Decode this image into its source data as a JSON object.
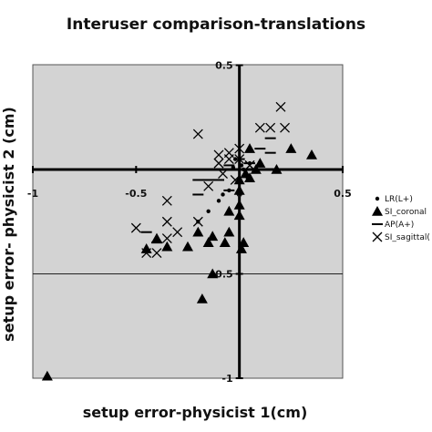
{
  "chart_data": {
    "type": "scatter",
    "title": "Interuser comparison-translations",
    "xlabel": "setup error-physicist 1(cm)",
    "ylabel": "setup error- physicist 2 (cm)",
    "xlim": [
      -1,
      0.5
    ],
    "ylim": [
      -1,
      0.5
    ],
    "xticks": [
      -1,
      -0.5,
      0,
      0.5
    ],
    "xtick_labels": [
      "-1",
      "-0.5",
      "0",
      "0.5"
    ],
    "yticks": [
      -1,
      -0.5,
      0.5
    ],
    "ytick_labels": [
      "-1",
      "-0.5",
      "0.5"
    ],
    "gridlines_y": [
      -0.5
    ],
    "plot_background": "#d3d3d3",
    "legend_position": "right",
    "series": [
      {
        "name": "LR(L+)",
        "marker": "dot",
        "points": [
          [
            -0.2,
            -0.25
          ],
          [
            -0.15,
            -0.2
          ],
          [
            -0.1,
            -0.15
          ],
          [
            -0.05,
            -0.1
          ],
          [
            0,
            -0.05
          ],
          [
            0.02,
            0
          ],
          [
            -0.02,
            0.05
          ],
          [
            0.03,
            -0.02
          ],
          [
            0.05,
            0.03
          ],
          [
            -0.08,
            -0.12
          ],
          [
            0.01,
            0.02
          ],
          [
            -0.03,
            0.01
          ],
          [
            0.04,
            -0.04
          ]
        ]
      },
      {
        "name": "SI_coronal",
        "marker": "triangle",
        "points": [
          [
            -0.93,
            -0.99
          ],
          [
            -0.45,
            -0.38
          ],
          [
            -0.4,
            -0.33
          ],
          [
            -0.35,
            -0.37
          ],
          [
            -0.25,
            -0.37
          ],
          [
            -0.2,
            -0.3
          ],
          [
            -0.15,
            -0.35
          ],
          [
            -0.13,
            -0.32
          ],
          [
            -0.07,
            -0.35
          ],
          [
            -0.13,
            -0.5
          ],
          [
            -0.18,
            -0.62
          ],
          [
            -0.05,
            -0.3
          ],
          [
            -0.05,
            -0.2
          ],
          [
            0,
            -0.22
          ],
          [
            0,
            -0.17
          ],
          [
            0,
            -0.05
          ],
          [
            0,
            -0.1
          ],
          [
            0.03,
            -0.02
          ],
          [
            0.05,
            -0.04
          ],
          [
            0.08,
            0
          ],
          [
            0.1,
            0.03
          ],
          [
            0.18,
            0
          ],
          [
            0.25,
            0.1
          ],
          [
            0.35,
            0.07
          ],
          [
            0.05,
            0.1
          ],
          [
            0.01,
            -0.38
          ],
          [
            0.02,
            -0.35
          ]
        ]
      },
      {
        "name": "AP(A+)",
        "marker": "dash",
        "points": [
          [
            -0.2,
            -0.12
          ],
          [
            -0.2,
            -0.05
          ],
          [
            -0.15,
            -0.05
          ],
          [
            -0.1,
            -0.05
          ],
          [
            -0.05,
            -0.1
          ],
          [
            -0.4,
            -0.35
          ],
          [
            -0.45,
            -0.3
          ],
          [
            -0.1,
            0
          ],
          [
            -0.05,
            0.02
          ],
          [
            0,
            0.05
          ],
          [
            0.1,
            0.1
          ],
          [
            0.15,
            0.15
          ],
          [
            0.15,
            0.08
          ],
          [
            0.05,
            0.03
          ]
        ]
      },
      {
        "name": "SI_sagittal(",
        "marker": "x",
        "points": [
          [
            -0.45,
            -0.4
          ],
          [
            -0.4,
            -0.4
          ],
          [
            -0.35,
            -0.33
          ],
          [
            -0.5,
            -0.28
          ],
          [
            -0.35,
            -0.25
          ],
          [
            -0.3,
            -0.3
          ],
          [
            -0.2,
            -0.25
          ],
          [
            -0.35,
            -0.15
          ],
          [
            -0.2,
            0.17
          ],
          [
            -0.1,
            0.03
          ],
          [
            -0.1,
            0.07
          ],
          [
            -0.05,
            0.08
          ],
          [
            -0.05,
            0.05
          ],
          [
            0,
            0.1
          ],
          [
            0,
            0.05
          ],
          [
            0.05,
            0.02
          ],
          [
            -0.02,
            -0.05
          ],
          [
            0.1,
            0.2
          ],
          [
            0.15,
            0.2
          ],
          [
            0.2,
            0.3
          ],
          [
            0.22,
            0.2
          ],
          [
            -0.15,
            -0.08
          ],
          [
            0.05,
            0.02
          ],
          [
            -0.08,
            -0.02
          ]
        ]
      }
    ]
  }
}
